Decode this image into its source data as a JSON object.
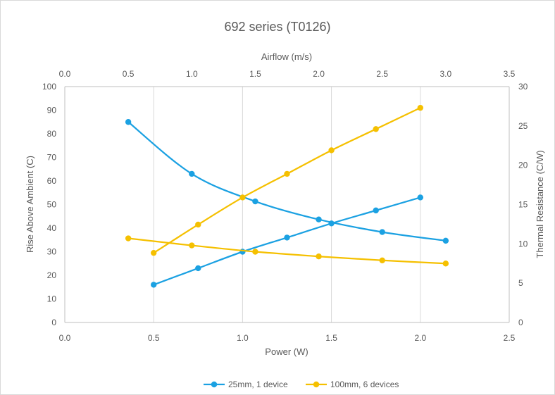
{
  "chart_data": {
    "type": "line",
    "title": "692 series (T0126)",
    "axes": {
      "x_bottom": {
        "label": "Power (W)",
        "lim": [
          0,
          2.5
        ],
        "ticks": [
          "0.0",
          "0.5",
          "1.0",
          "1.5",
          "2.0",
          "2.5"
        ]
      },
      "x_top": {
        "label": "Airflow (m/s)",
        "lim": [
          0,
          3.5
        ],
        "ticks": [
          "0.0",
          "0.5",
          "1.0",
          "1.5",
          "2.0",
          "2.5",
          "3.0",
          "3.5"
        ]
      },
      "y_left": {
        "label": "Rise Above Ambient (C)",
        "lim": [
          0,
          100
        ],
        "ticks": [
          "0",
          "10",
          "20",
          "30",
          "40",
          "50",
          "60",
          "70",
          "80",
          "90",
          "100"
        ]
      },
      "y_right": {
        "label": "Thermal Resistance (C/W)",
        "lim": [
          0,
          30
        ],
        "ticks": [
          "0",
          "5",
          "10",
          "15",
          "20",
          "25",
          "30"
        ]
      }
    },
    "grid": "vertical",
    "legend_position": "bottom",
    "series": [
      {
        "name": "25mm, 1 device",
        "color": "#1ba1e2",
        "axes": "power-rise",
        "x": [
          0.5,
          0.75,
          1.0,
          1.25,
          1.5,
          1.75,
          2.0
        ],
        "y": [
          16,
          23,
          30,
          36,
          42,
          47.5,
          53
        ]
      },
      {
        "name": "25mm, 1 device",
        "color": "#1ba1e2",
        "axes": "airflow-resistance",
        "x": [
          0.5,
          1.0,
          1.5,
          2.0,
          2.5,
          3.0
        ],
        "y": [
          25.5,
          18.9,
          15.4,
          13.1,
          11.5,
          10.4
        ]
      },
      {
        "name": "100mm, 6 devices",
        "color": "#f5c000",
        "axes": "power-rise",
        "x": [
          0.5,
          0.75,
          1.0,
          1.25,
          1.5,
          1.75,
          2.0
        ],
        "y": [
          29.5,
          41.5,
          53,
          63,
          73,
          82,
          91
        ]
      },
      {
        "name": "100mm, 6 devices",
        "color": "#f5c000",
        "axes": "airflow-resistance",
        "x": [
          0.5,
          1.0,
          1.5,
          2.0,
          2.5,
          3.0
        ],
        "y": [
          10.7,
          9.8,
          9.0,
          8.4,
          7.9,
          7.5
        ]
      }
    ],
    "legend": [
      {
        "name": "25mm, 1 device",
        "color": "#1ba1e2"
      },
      {
        "name": "100mm, 6 devices",
        "color": "#f5c000"
      }
    ]
  }
}
